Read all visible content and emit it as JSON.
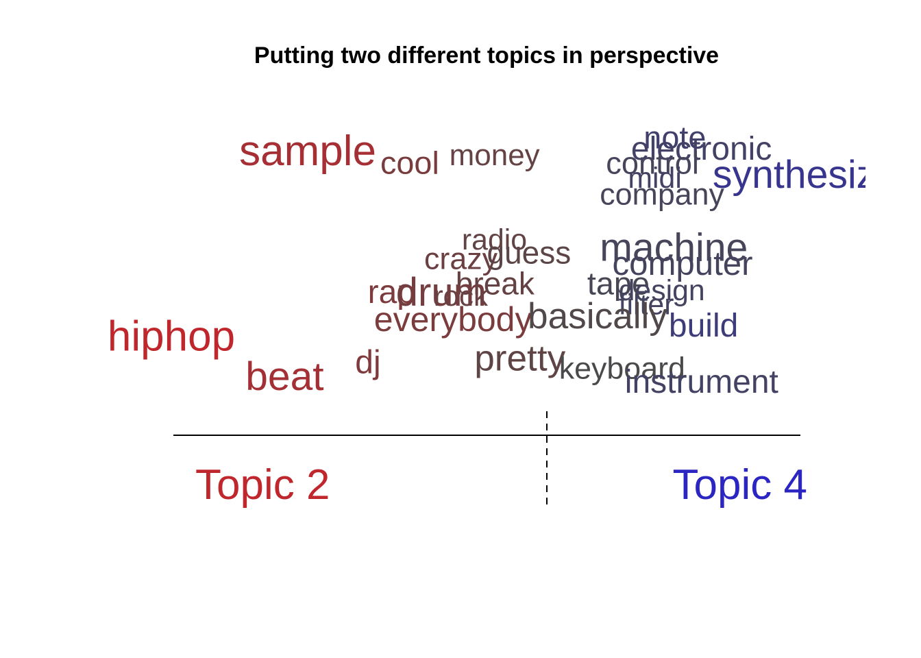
{
  "chart_data": {
    "type": "scatter",
    "title": "Putting two different topics in perspective",
    "left_label": "Topic 2",
    "right_label": "Topic 4",
    "left_color": "#c0272d",
    "right_color": "#2b25c2",
    "words": [
      {
        "word": "sample",
        "x": 0.105,
        "y": 0.9,
        "size": 1.0
      },
      {
        "word": "cool",
        "x": 0.33,
        "y": 0.87,
        "size": 0.62
      },
      {
        "word": "money",
        "x": 0.44,
        "y": 0.9,
        "size": 0.55
      },
      {
        "word": "note",
        "x": 0.75,
        "y": 0.96,
        "size": 0.62
      },
      {
        "word": "electronic",
        "x": 0.73,
        "y": 0.92,
        "size": 0.65
      },
      {
        "word": "control",
        "x": 0.69,
        "y": 0.87,
        "size": 0.58
      },
      {
        "word": "synthesizer",
        "x": 0.86,
        "y": 0.82,
        "size": 0.88
      },
      {
        "word": "midi",
        "x": 0.725,
        "y": 0.82,
        "size": 0.52
      },
      {
        "word": "company",
        "x": 0.68,
        "y": 0.76,
        "size": 0.57
      },
      {
        "word": "radio",
        "x": 0.46,
        "y": 0.6,
        "size": 0.52
      },
      {
        "word": "crazy",
        "x": 0.4,
        "y": 0.53,
        "size": 0.57
      },
      {
        "word": "guess",
        "x": 0.5,
        "y": 0.55,
        "size": 0.6
      },
      {
        "word": "machine",
        "x": 0.68,
        "y": 0.56,
        "size": 0.88
      },
      {
        "word": "computer",
        "x": 0.7,
        "y": 0.51,
        "size": 0.68
      },
      {
        "word": "break",
        "x": 0.45,
        "y": 0.44,
        "size": 0.6
      },
      {
        "word": "rap",
        "x": 0.31,
        "y": 0.41,
        "size": 0.65
      },
      {
        "word": "drum",
        "x": 0.355,
        "y": 0.4,
        "size": 0.9
      },
      {
        "word": "rock",
        "x": 0.415,
        "y": 0.4,
        "size": 0.5
      },
      {
        "word": "tape",
        "x": 0.66,
        "y": 0.44,
        "size": 0.62
      },
      {
        "word": "design",
        "x": 0.71,
        "y": 0.42,
        "size": 0.52
      },
      {
        "word": "filter",
        "x": 0.71,
        "y": 0.37,
        "size": 0.52
      },
      {
        "word": "everybody",
        "x": 0.32,
        "y": 0.31,
        "size": 0.7
      },
      {
        "word": "basically",
        "x": 0.565,
        "y": 0.32,
        "size": 0.78
      },
      {
        "word": "build",
        "x": 0.79,
        "y": 0.29,
        "size": 0.65
      },
      {
        "word": "hiphop",
        "x": -0.105,
        "y": 0.24,
        "size": 1.0
      },
      {
        "word": "dj",
        "x": 0.29,
        "y": 0.16,
        "size": 0.65
      },
      {
        "word": "pretty",
        "x": 0.48,
        "y": 0.17,
        "size": 0.78
      },
      {
        "word": "keyboard",
        "x": 0.615,
        "y": 0.14,
        "size": 0.57
      },
      {
        "word": "beat",
        "x": 0.115,
        "y": 0.1,
        "size": 0.92
      },
      {
        "word": "instrument",
        "x": 0.72,
        "y": 0.09,
        "size": 0.65
      }
    ]
  }
}
